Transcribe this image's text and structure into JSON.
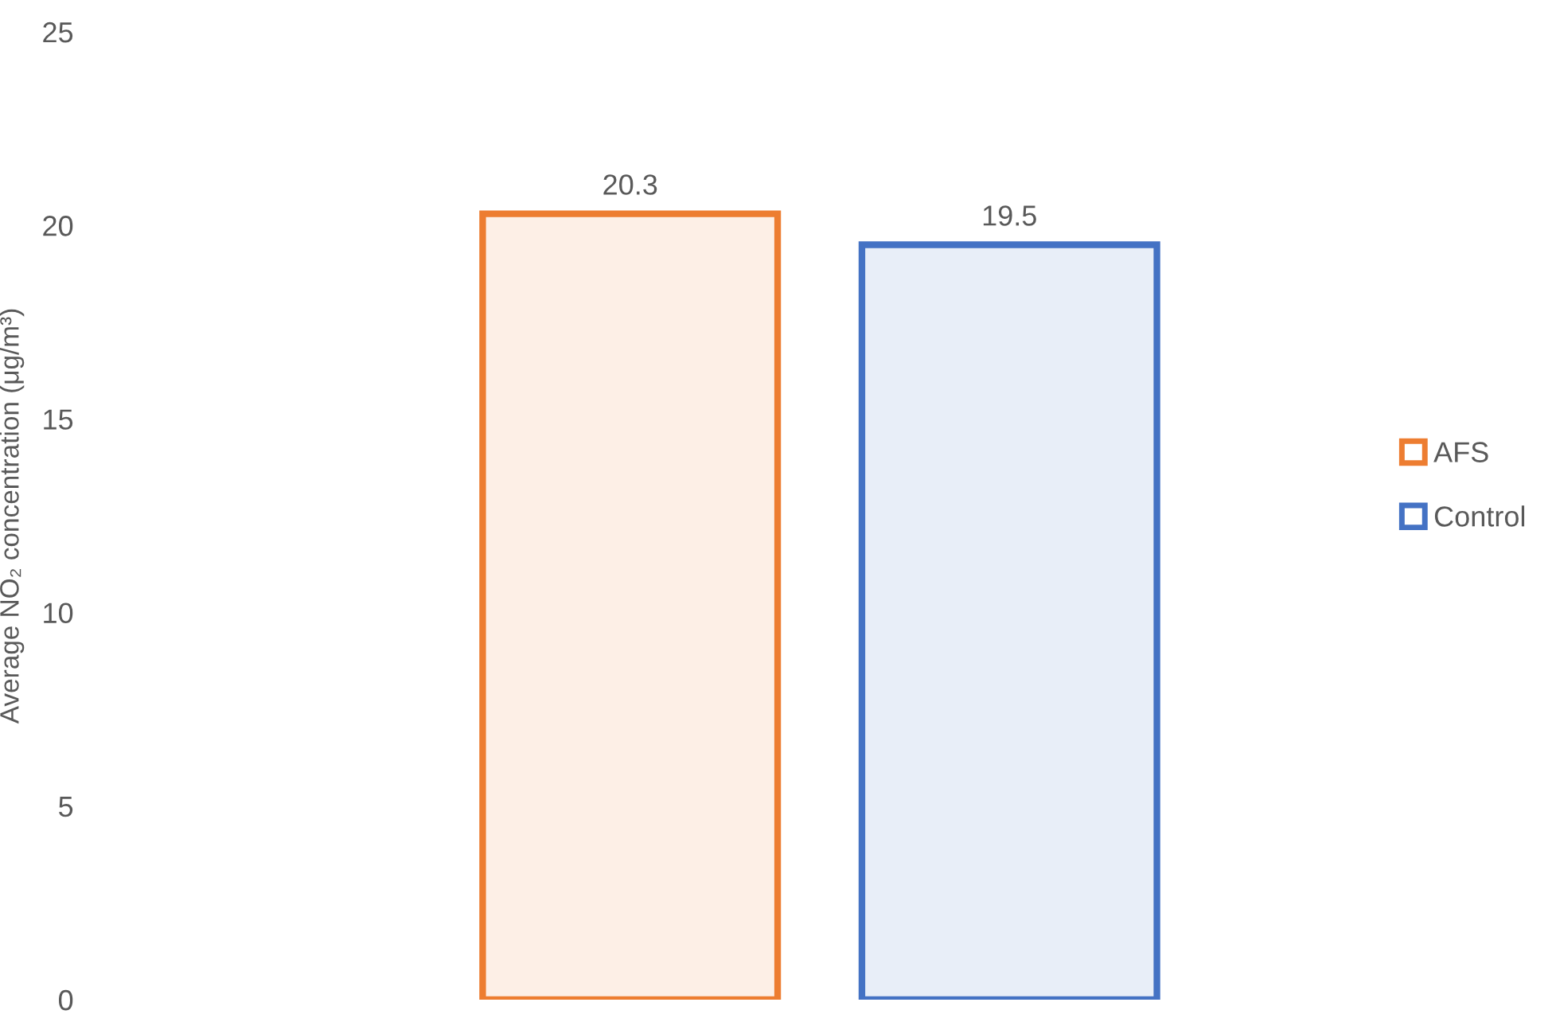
{
  "chart_data": {
    "type": "bar",
    "ylabel": "Average NO₂ concentration (μg/m³)",
    "categories": [
      null
    ],
    "series": [
      {
        "name": "AFS",
        "color": "#ed7d31",
        "values": [
          20.3
        ]
      },
      {
        "name": "Control",
        "color": "#4472c4",
        "values": [
          19.5
        ]
      }
    ],
    "ylim": [
      0,
      25
    ],
    "yticks": [
      0,
      5,
      10,
      15,
      20,
      25
    ],
    "grid": false,
    "legend": "right",
    "data_labels": true
  }
}
